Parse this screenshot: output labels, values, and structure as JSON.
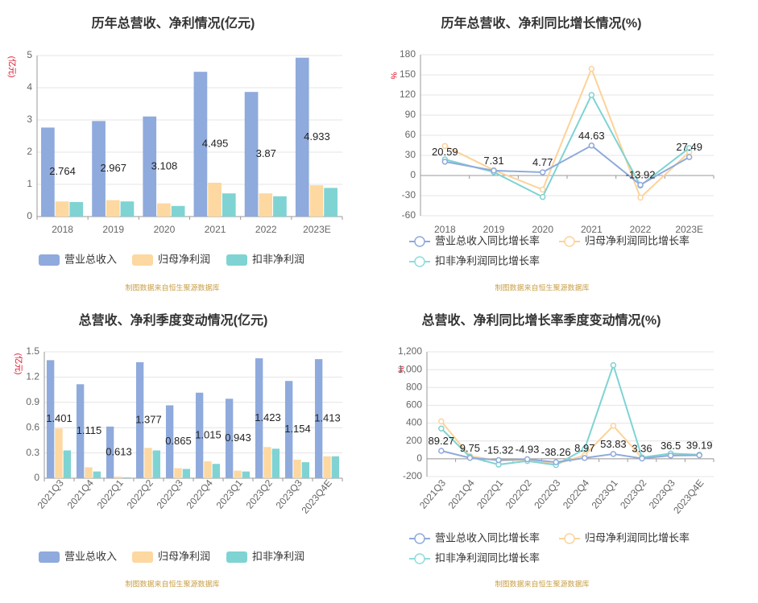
{
  "colors": {
    "revenue": "#8faadc",
    "net_profit": "#fdd8a0",
    "deducted_profit": "#7fd3d3",
    "grid": "#e4e4e4",
    "axis": "#666666",
    "title": "#333333",
    "unit": "#d9001b",
    "source": "#c8a04a"
  },
  "chart_data": [
    {
      "id": "annual-values",
      "type": "bar",
      "title": "历年总营收、净利情况(亿元)",
      "unit": "(亿元)",
      "categories": [
        "2018",
        "2019",
        "2020",
        "2021",
        "2022",
        "2023E"
      ],
      "ylim": [
        0,
        5
      ],
      "yticks": [
        "0",
        "1",
        "2",
        "3",
        "4",
        "5"
      ],
      "series": [
        {
          "name": "营业总收入",
          "values": [
            2.764,
            2.967,
            3.108,
            4.495,
            3.87,
            4.933
          ],
          "labels": [
            "2.764",
            "2.967",
            "3.108",
            "4.495",
            "3.87",
            "4.933"
          ]
        },
        {
          "name": "归母净利润",
          "values": [
            0.47,
            0.51,
            0.41,
            1.05,
            0.72,
            0.97
          ]
        },
        {
          "name": "扣非净利润",
          "values": [
            0.45,
            0.47,
            0.33,
            0.72,
            0.63,
            0.89
          ]
        }
      ],
      "source": "制图数据来自恒生聚源数据库"
    },
    {
      "id": "annual-growth",
      "type": "line",
      "title": "历年总营收、净利同比增长情况(%)",
      "unit": "%",
      "categories": [
        "2018",
        "2019",
        "2020",
        "2021",
        "2022",
        "2023E"
      ],
      "ylim": [
        -60,
        180
      ],
      "yticks": [
        "-60",
        "-30",
        "0",
        "30",
        "60",
        "90",
        "120",
        "150",
        "180"
      ],
      "series": [
        {
          "name": "营业总收入同比增长率",
          "values": [
            20.59,
            7.31,
            4.77,
            44.63,
            -13.92,
            27.49
          ],
          "labels": [
            "20.59",
            "7.31",
            "4.77",
            "44.63",
            "-13.92",
            "27.49"
          ]
        },
        {
          "name": "归母净利润同比增长率",
          "values": [
            44,
            8,
            -21,
            159,
            -33,
            35
          ]
        },
        {
          "name": "扣非净利润同比增长率",
          "values": [
            24,
            5,
            -32,
            120,
            -15,
            41
          ]
        }
      ],
      "source": "制图数据来自恒生聚源数据库"
    },
    {
      "id": "quarterly-values",
      "type": "bar",
      "title": "总营收、净利季度变动情况(亿元)",
      "unit": "(亿元)",
      "categories": [
        "2021Q3",
        "2021Q4",
        "2022Q1",
        "2022Q2",
        "2022Q3",
        "2022Q4",
        "2023Q1",
        "2023Q2",
        "2023Q3",
        "2023Q4E"
      ],
      "ylim": [
        0,
        1.5
      ],
      "yticks": [
        "0",
        "0.3",
        "0.6",
        "0.9",
        "1.2",
        "1.5"
      ],
      "series": [
        {
          "name": "营业总收入",
          "values": [
            1.401,
            1.115,
            0.613,
            1.377,
            0.865,
            1.015,
            0.943,
            1.423,
            1.154,
            1.413
          ],
          "labels": [
            "1.401",
            "1.115",
            "0.613",
            "1.377",
            "0.865",
            "1.015",
            "0.943",
            "1.423",
            "1.154",
            "1.413"
          ]
        },
        {
          "name": "归母净利润",
          "values": [
            0.59,
            0.13,
            0.02,
            0.36,
            0.12,
            0.2,
            0.09,
            0.37,
            0.22,
            0.26
          ]
        },
        {
          "name": "扣非净利润",
          "values": [
            0.33,
            0.08,
            0.01,
            0.33,
            0.11,
            0.17,
            0.08,
            0.35,
            0.19,
            0.26
          ]
        }
      ],
      "source": "制图数据来自恒生聚源数据库"
    },
    {
      "id": "quarterly-growth",
      "type": "line",
      "title": "总营收、净利同比增长率季度变动情况(%)",
      "unit": "%",
      "categories": [
        "2021Q3",
        "2021Q4",
        "2022Q1",
        "2022Q2",
        "2022Q3",
        "2022Q4",
        "2023Q1",
        "2023Q2",
        "2023Q3",
        "2023Q4E"
      ],
      "ylim": [
        -200,
        1200
      ],
      "yticks": [
        "-200",
        "0",
        "200",
        "400",
        "600",
        "800",
        "1,000",
        "1,200"
      ],
      "series": [
        {
          "name": "营业总收入同比增长率",
          "values": [
            89.27,
            9.75,
            -15.32,
            -4.93,
            -38.26,
            8.97,
            53.83,
            3.36,
            36.5,
            39.19
          ],
          "labels": [
            "89.27",
            "9.75",
            "-15.32",
            "-4.93",
            "-38.26",
            "8.97",
            "53.83",
            "3.36",
            "36.5",
            "39.19"
          ]
        },
        {
          "name": "归母净利润同比增长率",
          "values": [
            420,
            30,
            -20,
            -15,
            -60,
            40,
            370,
            10,
            50,
            45
          ]
        },
        {
          "name": "扣非净利润同比增长率",
          "values": [
            340,
            20,
            -65,
            -25,
            -70,
            110,
            1050,
            15,
            60,
            45
          ]
        }
      ],
      "source": "制图数据来自恒生聚源数据库"
    }
  ]
}
